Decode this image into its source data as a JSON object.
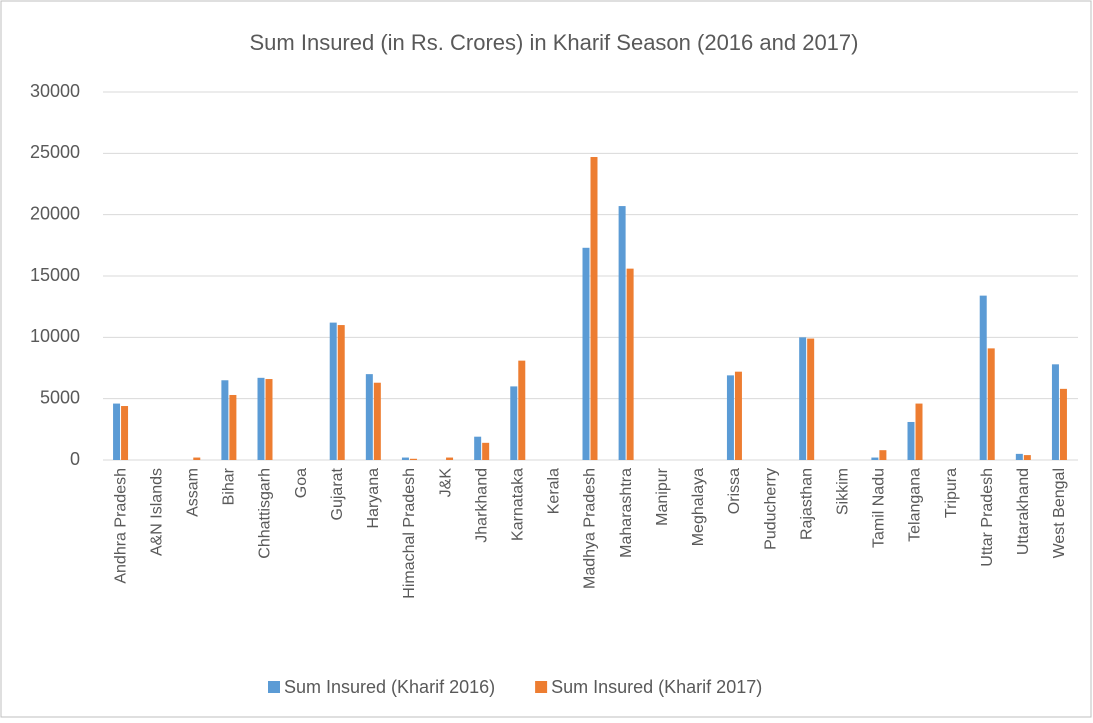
{
  "chart_data": {
    "type": "bar",
    "title": "Sum Insured (in Rs. Crores) in Kharif Season (2016 and 2017)",
    "categories": [
      "Andhra Pradesh",
      "A&N Islands",
      "Assam",
      "Bihar",
      "Chhattisgarh",
      "Goa",
      "Gujarat",
      "Haryana",
      "Himachal Pradesh",
      "J&K",
      "Jharkhand",
      "Karnataka",
      "Kerala",
      "Madhya Pradesh",
      "Maharashtra",
      "Manipur",
      "Meghalaya",
      "Orissa",
      "Puducherry",
      "Rajasthan",
      "Sikkim",
      "Tamil Nadu",
      "Telangana",
      "Tripura",
      "Uttar Pradesh",
      "Uttarakhand",
      "West Bengal"
    ],
    "series": [
      {
        "name": "Sum Insured (Kharif 2016)",
        "color": "#5b9bd5",
        "values": [
          4600,
          0,
          0,
          6500,
          6700,
          0,
          11200,
          7000,
          200,
          0,
          1900,
          6000,
          0,
          17300,
          20700,
          0,
          0,
          6900,
          0,
          10000,
          0,
          200,
          3100,
          0,
          13400,
          500,
          7800
        ]
      },
      {
        "name": "Sum Insured (Kharif 2017)",
        "color": "#ed7d31",
        "values": [
          4400,
          0,
          200,
          5300,
          6600,
          0,
          11000,
          6300,
          100,
          200,
          1400,
          8100,
          0,
          24700,
          15600,
          0,
          0,
          7200,
          0,
          9900,
          0,
          800,
          4600,
          0,
          9100,
          400,
          5800
        ]
      }
    ],
    "ylim": [
      0,
      30000
    ],
    "yticks": [
      0,
      5000,
      10000,
      15000,
      20000,
      25000,
      30000
    ],
    "grid": true,
    "legend": "bottom"
  }
}
